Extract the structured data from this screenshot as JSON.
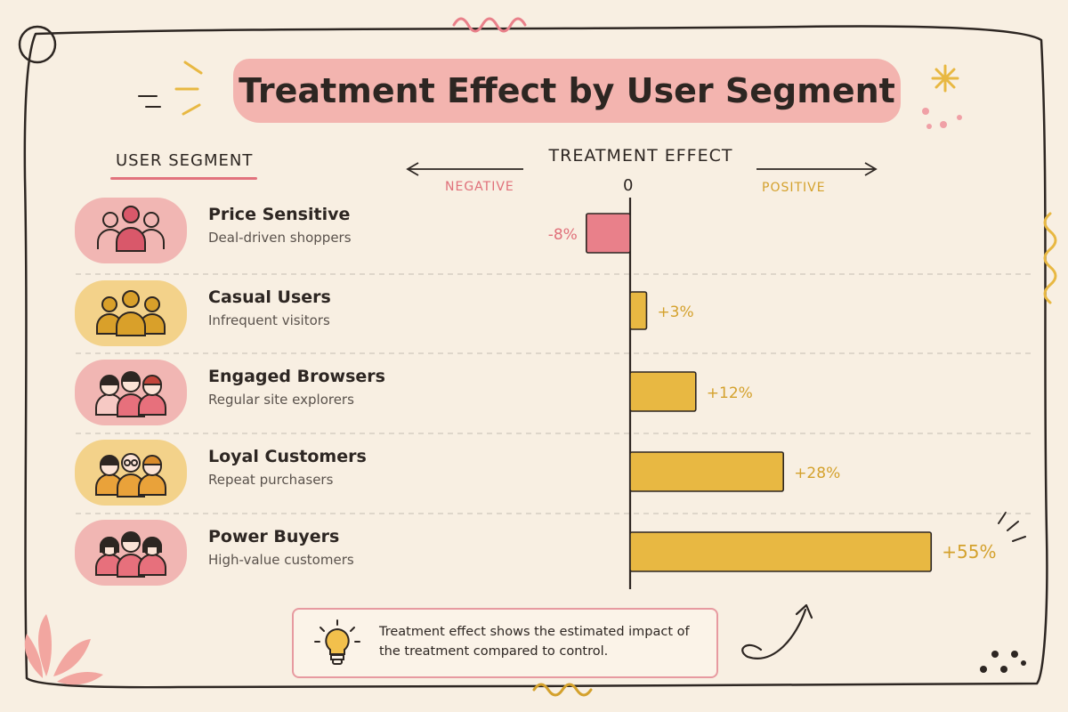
{
  "title": "Treatment Effect by User Segment",
  "segment_header": "USER SEGMENT",
  "axis": {
    "title": "TREATMENT EFFECT",
    "negative_label": "NEGATIVE",
    "positive_label": "POSITIVE",
    "zero_label": "0"
  },
  "segments": [
    {
      "name": "Price Sensitive",
      "description": "Deal-driven shoppers",
      "badge": "pink",
      "icon": "people-group-icon"
    },
    {
      "name": "Casual Users",
      "description": "Infrequent visitors",
      "badge": "yellow",
      "icon": "people-group-icon"
    },
    {
      "name": "Engaged Browsers",
      "description": "Regular site explorers",
      "badge": "pink",
      "icon": "people-group-icon"
    },
    {
      "name": "Loyal Customers",
      "description": "Repeat purchasers",
      "badge": "yellow",
      "icon": "people-group-icon"
    },
    {
      "name": "Power Buyers",
      "description": "High-value customers",
      "badge": "pink",
      "icon": "people-group-icon"
    }
  ],
  "note": {
    "text": "Treatment effect shows the estimated impact of the treatment compared to control.",
    "icon": "lightbulb-icon"
  },
  "colors": {
    "negative": "#e9808a",
    "positive": "#e8b842",
    "title_band": "#f2a9a6",
    "outline": "#2d2622",
    "negative_text": "#e0707a",
    "positive_text": "#d4a12c"
  },
  "chart_data": {
    "type": "bar",
    "orientation": "horizontal",
    "categories": [
      "Price Sensitive",
      "Casual Users",
      "Engaged Browsers",
      "Loyal Customers",
      "Power Buyers"
    ],
    "values": [
      -8,
      3,
      12,
      28,
      55
    ],
    "labels": [
      "-8%",
      "+3%",
      "+12%",
      "+28%",
      "+55%"
    ],
    "unit": "%",
    "title": "Treatment Effect by User Segment",
    "xlabel": "TREATMENT EFFECT",
    "ylabel": "USER SEGMENT",
    "grid": false
  }
}
